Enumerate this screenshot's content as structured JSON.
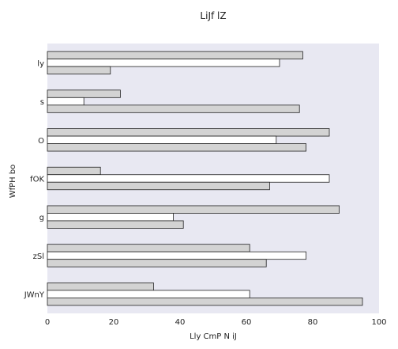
{
  "chart_data": {
    "type": "bar",
    "orientation": "horizontal",
    "title": "LiJf lZ",
    "xlabel": "Lly CmP  N iJ",
    "ylabel": "WfPH bo",
    "categories": [
      "ly",
      "s",
      "O",
      "fOK",
      "g",
      "zSl",
      "JWnY"
    ],
    "series": [
      {
        "color": "#d3d3d3",
        "values": [
          77,
          22,
          85,
          16,
          88,
          61,
          32
        ]
      },
      {
        "color": "#ffffff",
        "values": [
          70,
          11,
          69,
          85,
          38,
          78,
          61
        ]
      },
      {
        "color": "#d3d3d3",
        "values": [
          19,
          76,
          78,
          67,
          41,
          66,
          95
        ]
      }
    ],
    "xlim": [
      0,
      100
    ],
    "xticks": [
      "0",
      "20",
      "40",
      "60",
      "80",
      "100"
    ],
    "grid": false,
    "legend": "none",
    "colors": {
      "plot_bg": "#e8e8f2",
      "bar_edge": "#222222"
    }
  }
}
